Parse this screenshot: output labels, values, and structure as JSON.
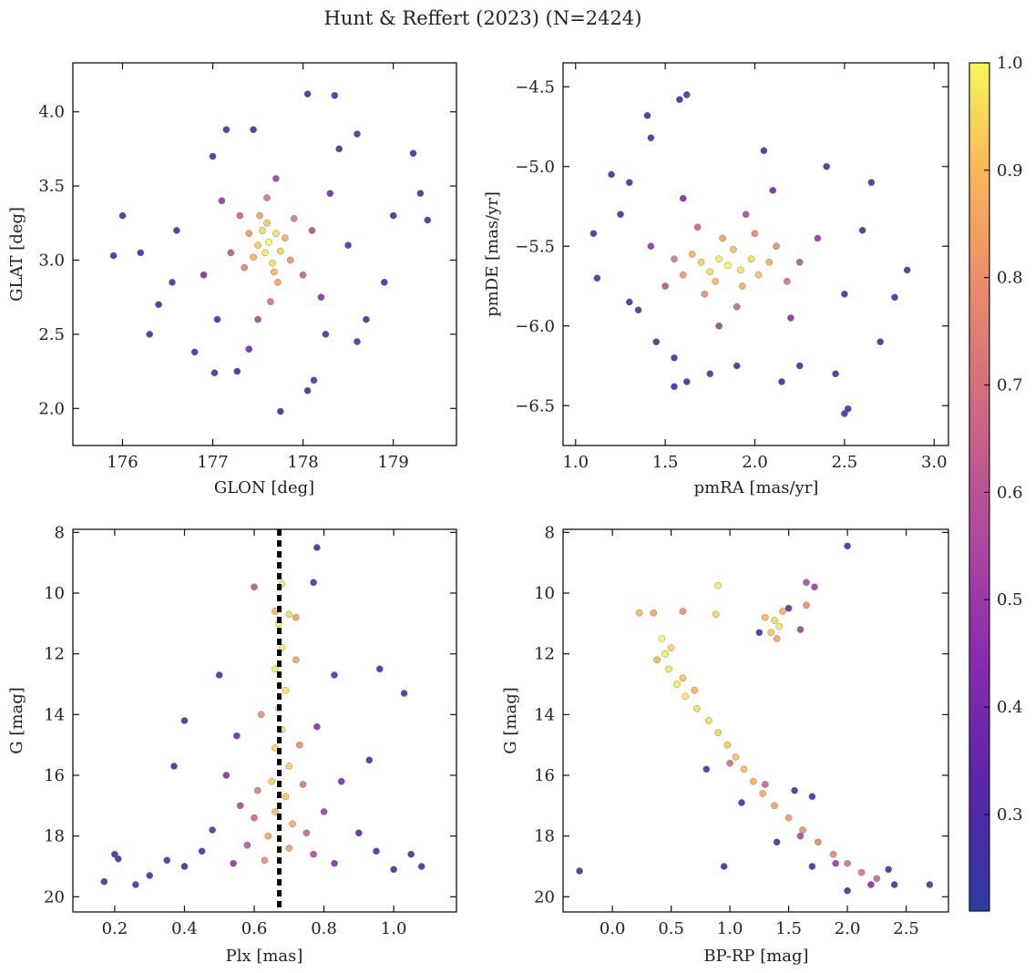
{
  "figure": {
    "title": "Hunt & Reffert (2023) (N=2424)"
  },
  "colorbar": {
    "colormap": "plasma",
    "range": [
      0.21,
      1.0
    ],
    "ticks": [
      0.3,
      0.4,
      0.5,
      0.6,
      0.7,
      0.8,
      0.9,
      1.0
    ],
    "tick_labels": [
      "0.3",
      "0.4",
      "0.5",
      "0.6",
      "0.7",
      "0.8",
      "0.9",
      "1.0"
    ]
  },
  "chart_data": [
    {
      "type": "scatter",
      "id": "glon-glat",
      "title": "",
      "xlabel": "GLON [deg]",
      "ylabel": "GLAT [deg]",
      "xlim": [
        175.45,
        179.7
      ],
      "ylim": [
        1.75,
        4.33
      ],
      "y_inverted": false,
      "xticks": [
        176,
        177,
        178,
        179
      ],
      "xtick_labels": [
        "176",
        "177",
        "178",
        "179"
      ],
      "yticks": [
        2.0,
        2.5,
        3.0,
        3.5,
        4.0
      ],
      "ytick_labels": [
        "2.0",
        "2.5",
        "3.0",
        "3.5",
        "4.0"
      ],
      "points": [
        [
          177.62,
          3.12,
          1.0
        ],
        [
          177.58,
          3.05,
          0.98
        ],
        [
          177.7,
          3.18,
          0.97
        ],
        [
          177.55,
          3.2,
          0.95
        ],
        [
          177.66,
          2.98,
          0.96
        ],
        [
          177.5,
          3.1,
          0.93
        ],
        [
          177.75,
          3.06,
          0.94
        ],
        [
          177.6,
          3.25,
          0.92
        ],
        [
          177.68,
          2.92,
          0.9
        ],
        [
          177.45,
          3.02,
          0.88
        ],
        [
          177.8,
          3.15,
          0.87
        ],
        [
          177.52,
          3.3,
          0.85
        ],
        [
          177.72,
          2.85,
          0.84
        ],
        [
          177.4,
          3.18,
          0.82
        ],
        [
          177.86,
          3.0,
          0.8
        ],
        [
          177.35,
          2.95,
          0.76
        ],
        [
          177.9,
          3.28,
          0.74
        ],
        [
          177.6,
          3.42,
          0.72
        ],
        [
          177.64,
          2.72,
          0.7
        ],
        [
          177.3,
          3.3,
          0.66
        ],
        [
          178.0,
          2.9,
          0.64
        ],
        [
          177.2,
          3.05,
          0.6
        ],
        [
          178.1,
          3.2,
          0.58
        ],
        [
          177.5,
          2.6,
          0.55
        ],
        [
          177.7,
          3.55,
          0.52
        ],
        [
          177.1,
          3.4,
          0.48
        ],
        [
          178.2,
          2.75,
          0.45
        ],
        [
          176.9,
          2.9,
          0.42
        ],
        [
          178.3,
          3.45,
          0.4
        ],
        [
          177.4,
          2.4,
          0.38
        ],
        [
          176.6,
          3.2,
          0.3
        ],
        [
          178.5,
          3.1,
          0.3
        ],
        [
          176.4,
          2.7,
          0.26
        ],
        [
          178.7,
          2.6,
          0.25
        ],
        [
          177.0,
          3.7,
          0.28
        ],
        [
          178.4,
          3.75,
          0.26
        ],
        [
          176.2,
          3.05,
          0.24
        ],
        [
          179.0,
          3.3,
          0.23
        ],
        [
          176.0,
          3.3,
          0.22
        ],
        [
          179.3,
          3.45,
          0.22
        ],
        [
          175.9,
          3.03,
          0.22
        ],
        [
          178.05,
          4.12,
          0.23
        ],
        [
          178.35,
          4.11,
          0.22
        ],
        [
          179.22,
          3.72,
          0.23
        ],
        [
          179.38,
          3.27,
          0.22
        ],
        [
          177.75,
          1.98,
          0.22
        ],
        [
          178.05,
          2.12,
          0.23
        ],
        [
          178.12,
          2.19,
          0.22
        ],
        [
          177.02,
          2.24,
          0.23
        ],
        [
          176.8,
          2.38,
          0.24
        ],
        [
          177.27,
          2.25,
          0.23
        ],
        [
          176.55,
          2.85,
          0.25
        ],
        [
          178.9,
          2.85,
          0.24
        ],
        [
          177.15,
          3.88,
          0.24
        ],
        [
          177.45,
          3.88,
          0.23
        ],
        [
          178.6,
          3.85,
          0.24
        ],
        [
          176.3,
          2.5,
          0.23
        ],
        [
          178.6,
          2.45,
          0.24
        ],
        [
          177.05,
          2.6,
          0.3
        ],
        [
          178.25,
          2.5,
          0.3
        ]
      ]
    },
    {
      "type": "scatter",
      "id": "pmra-pmde",
      "title": "",
      "xlabel": "pmRA [mas/yr]",
      "ylabel": "pmDE [mas/yr]",
      "xlim": [
        0.93,
        3.08
      ],
      "ylim": [
        -6.75,
        -4.35
      ],
      "y_inverted": false,
      "xticks": [
        1.0,
        1.5,
        2.0,
        2.5,
        3.0
      ],
      "xtick_labels": [
        "1.0",
        "1.5",
        "2.0",
        "2.5",
        "3.0"
      ],
      "yticks": [
        -6.5,
        -6.0,
        -5.5,
        -5.0,
        -4.5
      ],
      "ytick_labels": [
        "−6.5",
        "−6.0",
        "−5.5",
        "−5.0",
        "−4.5"
      ],
      "points": [
        [
          1.85,
          -5.62,
          1.0
        ],
        [
          1.8,
          -5.58,
          0.98
        ],
        [
          1.92,
          -5.65,
          0.97
        ],
        [
          1.75,
          -5.66,
          0.95
        ],
        [
          1.98,
          -5.58,
          0.95
        ],
        [
          1.7,
          -5.6,
          0.93
        ],
        [
          2.02,
          -5.68,
          0.92
        ],
        [
          1.88,
          -5.52,
          0.91
        ],
        [
          1.78,
          -5.72,
          0.9
        ],
        [
          1.65,
          -5.55,
          0.88
        ],
        [
          2.08,
          -5.6,
          0.87
        ],
        [
          1.93,
          -5.75,
          0.86
        ],
        [
          1.82,
          -5.45,
          0.84
        ],
        [
          1.6,
          -5.68,
          0.82
        ],
        [
          2.12,
          -5.5,
          0.8
        ],
        [
          1.72,
          -5.8,
          0.78
        ],
        [
          2.0,
          -5.42,
          0.76
        ],
        [
          1.55,
          -5.58,
          0.72
        ],
        [
          2.18,
          -5.72,
          0.7
        ],
        [
          1.9,
          -5.88,
          0.66
        ],
        [
          1.68,
          -5.38,
          0.64
        ],
        [
          2.25,
          -5.6,
          0.6
        ],
        [
          1.5,
          -5.75,
          0.58
        ],
        [
          1.95,
          -5.3,
          0.55
        ],
        [
          1.8,
          -6.0,
          0.52
        ],
        [
          2.35,
          -5.45,
          0.48
        ],
        [
          1.42,
          -5.5,
          0.46
        ],
        [
          2.2,
          -5.95,
          0.44
        ],
        [
          1.6,
          -5.2,
          0.42
        ],
        [
          2.1,
          -5.15,
          0.4
        ],
        [
          1.35,
          -5.9,
          0.3
        ],
        [
          2.5,
          -5.8,
          0.3
        ],
        [
          1.25,
          -5.3,
          0.27
        ],
        [
          2.6,
          -5.4,
          0.26
        ],
        [
          1.55,
          -6.2,
          0.27
        ],
        [
          2.25,
          -6.25,
          0.26
        ],
        [
          1.62,
          -4.55,
          0.22
        ],
        [
          1.58,
          -4.58,
          0.23
        ],
        [
          1.4,
          -4.68,
          0.22
        ],
        [
          1.42,
          -4.82,
          0.22
        ],
        [
          1.1,
          -5.42,
          0.22
        ],
        [
          1.12,
          -5.7,
          0.23
        ],
        [
          1.3,
          -5.85,
          0.22
        ],
        [
          2.85,
          -5.65,
          0.22
        ],
        [
          2.78,
          -5.82,
          0.23
        ],
        [
          2.5,
          -6.55,
          0.22
        ],
        [
          2.52,
          -6.52,
          0.23
        ],
        [
          1.55,
          -6.38,
          0.22
        ],
        [
          1.62,
          -6.35,
          0.23
        ],
        [
          2.05,
          -4.9,
          0.24
        ],
        [
          2.65,
          -5.1,
          0.23
        ],
        [
          1.2,
          -5.05,
          0.24
        ],
        [
          2.45,
          -6.3,
          0.24
        ],
        [
          1.75,
          -6.3,
          0.25
        ],
        [
          2.4,
          -5.0,
          0.24
        ],
        [
          1.3,
          -5.1,
          0.24
        ],
        [
          2.7,
          -6.1,
          0.24
        ],
        [
          1.9,
          -6.25,
          0.26
        ],
        [
          2.15,
          -6.35,
          0.23
        ],
        [
          1.45,
          -6.1,
          0.25
        ]
      ]
    },
    {
      "type": "scatter",
      "id": "plx-g",
      "title": "",
      "xlabel": "Plx [mas]",
      "ylabel": "G [mag]",
      "xlim": [
        0.08,
        1.18
      ],
      "ylim": [
        20.5,
        7.9
      ],
      "y_inverted": true,
      "vline": 0.672,
      "xticks": [
        0.2,
        0.4,
        0.6,
        0.8,
        1.0
      ],
      "xtick_labels": [
        "0.2",
        "0.4",
        "0.6",
        "0.8",
        "1.0"
      ],
      "yticks": [
        8,
        10,
        12,
        14,
        16,
        18,
        20
      ],
      "ytick_labels": [
        "8",
        "10",
        "12",
        "14",
        "16",
        "18",
        "20"
      ],
      "points": [
        [
          0.67,
          11.0,
          1.0
        ],
        [
          0.68,
          11.8,
          0.98
        ],
        [
          0.66,
          12.5,
          0.98
        ],
        [
          0.69,
          13.2,
          0.97
        ],
        [
          0.67,
          13.8,
          0.97
        ],
        [
          0.68,
          14.5,
          0.96
        ],
        [
          0.66,
          15.1,
          0.95
        ],
        [
          0.7,
          15.7,
          0.94
        ],
        [
          0.65,
          16.2,
          0.93
        ],
        [
          0.69,
          16.7,
          0.92
        ],
        [
          0.66,
          17.2,
          0.9
        ],
        [
          0.71,
          17.6,
          0.88
        ],
        [
          0.64,
          18.0,
          0.86
        ],
        [
          0.7,
          18.4,
          0.84
        ],
        [
          0.63,
          18.8,
          0.8
        ],
        [
          0.72,
          12.2,
          0.85
        ],
        [
          0.62,
          14.0,
          0.8
        ],
        [
          0.73,
          15.0,
          0.78
        ],
        [
          0.61,
          16.5,
          0.74
        ],
        [
          0.74,
          16.3,
          0.72
        ],
        [
          0.6,
          17.4,
          0.68
        ],
        [
          0.75,
          17.9,
          0.66
        ],
        [
          0.58,
          18.3,
          0.6
        ],
        [
          0.77,
          18.6,
          0.58
        ],
        [
          0.56,
          17.0,
          0.55
        ],
        [
          0.8,
          17.2,
          0.52
        ],
        [
          0.54,
          18.9,
          0.48
        ],
        [
          0.83,
          18.9,
          0.45
        ],
        [
          0.52,
          16.0,
          0.44
        ],
        [
          0.85,
          16.2,
          0.42
        ],
        [
          0.48,
          17.8,
          0.35
        ],
        [
          0.9,
          17.9,
          0.34
        ],
        [
          0.45,
          18.5,
          0.3
        ],
        [
          0.95,
          18.5,
          0.3
        ],
        [
          0.4,
          19.0,
          0.28
        ],
        [
          1.0,
          19.1,
          0.27
        ],
        [
          0.35,
          18.8,
          0.26
        ],
        [
          1.05,
          18.6,
          0.25
        ],
        [
          0.3,
          19.3,
          0.24
        ],
        [
          1.08,
          19.0,
          0.23
        ],
        [
          0.2,
          18.6,
          0.22
        ],
        [
          0.21,
          18.75,
          0.23
        ],
        [
          0.17,
          19.5,
          0.22
        ],
        [
          0.26,
          19.6,
          0.22
        ],
        [
          1.03,
          13.3,
          0.22
        ],
        [
          0.96,
          12.5,
          0.23
        ],
        [
          0.78,
          8.5,
          0.23
        ],
        [
          0.77,
          9.65,
          0.3
        ],
        [
          0.6,
          9.8,
          0.6
        ],
        [
          0.37,
          15.7,
          0.24
        ],
        [
          0.4,
          14.2,
          0.25
        ],
        [
          0.93,
          15.5,
          0.24
        ],
        [
          0.5,
          12.7,
          0.3
        ],
        [
          0.83,
          12.7,
          0.35
        ],
        [
          0.55,
          14.7,
          0.4
        ],
        [
          0.78,
          14.4,
          0.45
        ],
        [
          0.68,
          9.7,
          0.98
        ],
        [
          0.7,
          10.7,
          0.95
        ],
        [
          0.66,
          10.6,
          0.9
        ],
        [
          0.72,
          10.8,
          0.85
        ]
      ]
    },
    {
      "type": "scatter",
      "id": "bprp-g",
      "title": "",
      "xlabel": "BP-RP [mag]",
      "ylabel": "G [mag]",
      "xlim": [
        -0.42,
        2.86
      ],
      "ylim": [
        20.5,
        7.9
      ],
      "y_inverted": true,
      "xticks": [
        0.0,
        0.5,
        1.0,
        1.5,
        2.0,
        2.5
      ],
      "xtick_labels": [
        "0.0",
        "0.5",
        "1.0",
        "1.5",
        "2.0",
        "2.5"
      ],
      "yticks": [
        8,
        10,
        12,
        14,
        16,
        18,
        20
      ],
      "ytick_labels": [
        "8",
        "10",
        "12",
        "14",
        "16",
        "18",
        "20"
      ],
      "points": [
        [
          0.42,
          11.5,
          1.0
        ],
        [
          0.45,
          12.0,
          0.99
        ],
        [
          0.48,
          12.5,
          0.98
        ],
        [
          0.55,
          13.0,
          0.98
        ],
        [
          0.62,
          13.4,
          0.97
        ],
        [
          0.72,
          13.8,
          0.96
        ],
        [
          0.82,
          14.2,
          0.95
        ],
        [
          0.9,
          14.6,
          0.94
        ],
        [
          0.98,
          15.0,
          0.93
        ],
        [
          1.05,
          15.4,
          0.92
        ],
        [
          1.12,
          15.8,
          0.9
        ],
        [
          1.2,
          16.2,
          0.88
        ],
        [
          1.28,
          16.6,
          0.86
        ],
        [
          1.38,
          17.0,
          0.84
        ],
        [
          1.5,
          17.4,
          0.82
        ],
        [
          1.62,
          17.8,
          0.8
        ],
        [
          1.75,
          18.2,
          0.78
        ],
        [
          1.88,
          18.6,
          0.76
        ],
        [
          2.0,
          18.9,
          0.72
        ],
        [
          2.12,
          19.2,
          0.7
        ],
        [
          2.25,
          19.4,
          0.68
        ],
        [
          0.5,
          11.8,
          0.95
        ],
        [
          0.38,
          12.2,
          0.9
        ],
        [
          0.6,
          12.8,
          0.92
        ],
        [
          0.7,
          13.2,
          0.9
        ],
        [
          1.0,
          15.6,
          0.7
        ],
        [
          1.3,
          16.3,
          0.65
        ],
        [
          1.6,
          18.0,
          0.55
        ],
        [
          1.9,
          18.9,
          0.5
        ],
        [
          2.2,
          19.6,
          0.45
        ],
        [
          0.8,
          15.8,
          0.3
        ],
        [
          1.1,
          16.9,
          0.3
        ],
        [
          1.4,
          18.2,
          0.28
        ],
        [
          1.7,
          19.0,
          0.28
        ],
        [
          2.35,
          19.1,
          0.3
        ],
        [
          2.0,
          19.8,
          0.26
        ],
        [
          2.4,
          19.6,
          0.26
        ],
        [
          -0.28,
          19.15,
          0.22
        ],
        [
          2.7,
          19.6,
          0.23
        ],
        [
          2.0,
          8.45,
          0.22
        ],
        [
          0.23,
          10.65,
          0.9
        ],
        [
          0.35,
          10.65,
          0.85
        ],
        [
          0.6,
          10.6,
          0.8
        ],
        [
          0.9,
          9.75,
          0.98
        ],
        [
          0.88,
          10.7,
          0.95
        ],
        [
          1.3,
          10.8,
          0.9
        ],
        [
          1.38,
          10.9,
          0.95
        ],
        [
          1.42,
          11.1,
          0.98
        ],
        [
          1.35,
          11.3,
          0.92
        ],
        [
          1.45,
          10.6,
          0.88
        ],
        [
          1.4,
          11.5,
          0.85
        ],
        [
          1.65,
          10.4,
          0.8
        ],
        [
          1.65,
          9.65,
          0.55
        ],
        [
          1.72,
          9.8,
          0.5
        ],
        [
          1.6,
          11.2,
          0.52
        ],
        [
          1.25,
          11.3,
          0.3
        ],
        [
          1.5,
          10.5,
          0.35
        ],
        [
          1.55,
          16.5,
          0.26
        ],
        [
          1.7,
          16.7,
          0.3
        ],
        [
          0.95,
          19.0,
          0.24
        ]
      ]
    }
  ]
}
